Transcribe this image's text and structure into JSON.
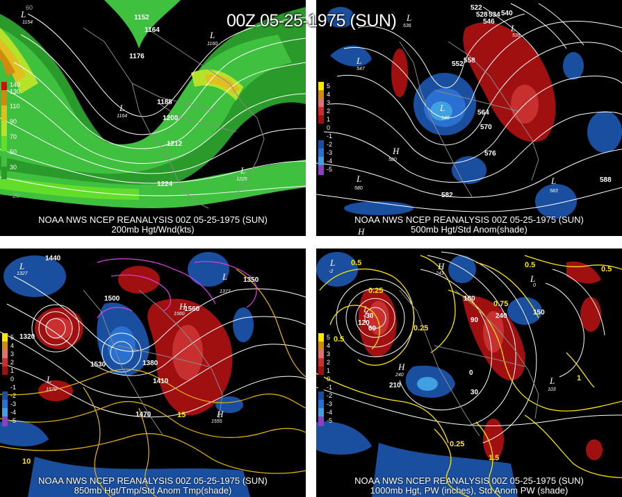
{
  "title": "00Z 05-25-1975 (SUN)",
  "colors": {
    "wind_scale": [
      "#2a9a2a",
      "#3fc03f",
      "#62de2a",
      "#b7e22a",
      "#e0c020",
      "#d08a10",
      "#8a3010"
    ],
    "anom_pos": [
      "#6a0000",
      "#a01010",
      "#c83030",
      "#e07070"
    ],
    "anom_neg": [
      "#1a4fa0",
      "#2a70d0",
      "#40a0e0",
      "#80d0f0"
    ]
  },
  "panels": [
    {
      "id": "200mb",
      "caption_line1": "NOAA NWS NCEP REANALYSIS 00Z 05-25-1975 (SUN)",
      "caption_line2": "200mb Hgt/Wnd(kts)",
      "legend": [
        "130",
        "110",
        "90",
        "70",
        "50",
        "30"
      ],
      "legend_top": "140",
      "contour_labels": [
        "1152",
        "1164",
        "1176",
        "1188",
        "1200",
        "1212",
        "1224"
      ],
      "lows": [
        {
          "label": "L",
          "value": "1154"
        },
        {
          "label": "L",
          "value": "1160"
        },
        {
          "label": "L",
          "value": "1164"
        },
        {
          "label": "L",
          "value": "1225"
        }
      ],
      "grid_labels": [
        "60",
        "20"
      ]
    },
    {
      "id": "500mb",
      "caption_line1": "NOAA NWS NCEP REANALYSIS 00Z 05-25-1975 (SUN)",
      "caption_line2": "500mb Hgt/Std Anom(shade)",
      "legend": [
        "5",
        "4",
        "3",
        "2",
        "1",
        "0",
        "-1",
        "-2",
        "-3",
        "-4",
        "-5"
      ],
      "contour_labels": [
        "522",
        "528",
        "534",
        "540",
        "546",
        "552",
        "558",
        "564",
        "570",
        "576",
        "582",
        "588"
      ],
      "lows": [
        {
          "label": "L",
          "value": "535"
        },
        {
          "label": "L",
          "value": "536"
        },
        {
          "label": "L",
          "value": "547"
        },
        {
          "label": "L",
          "value": "546"
        },
        {
          "label": "L",
          "value": "583"
        },
        {
          "label": "L",
          "value": "580"
        }
      ],
      "highs": [
        {
          "label": "H",
          "value": "580"
        },
        {
          "label": "H",
          "value": ""
        }
      ]
    },
    {
      "id": "850mb",
      "caption_line1": "NOAA NWS NCEP REANALYSIS 00Z 05-25-1975 (SUN)",
      "caption_line2": "850mb Hgt/Tmp/Std Anom Tmp(shade)",
      "legend": [
        "5",
        "4",
        "3",
        "2",
        "1",
        "0",
        "-1",
        "-2",
        "-3",
        "-4",
        "-5"
      ],
      "contour_labels": [
        "1440",
        "1500",
        "1320",
        "1380",
        "1530",
        "1410",
        "1350",
        "1470",
        "1560"
      ],
      "temp_labels": [
        "15",
        "10"
      ],
      "lows": [
        {
          "label": "L",
          "value": "1327"
        },
        {
          "label": "L",
          "value": "1377"
        },
        {
          "label": "L",
          "value": "1570"
        }
      ],
      "highs": [
        {
          "label": "H",
          "value": "1560"
        },
        {
          "label": "H",
          "value": "1555"
        }
      ]
    },
    {
      "id": "1000mb",
      "caption_line1": "NOAA NWS NCEP REANALYSIS 00Z 05-25-1975 (SUN)",
      "caption_line2": "1000mb Hgt, PW (inches), Std Anom PW (shade)",
      "legend": [
        "5",
        "4",
        "3",
        "2",
        "1",
        "0",
        "-1",
        "-2",
        "-3",
        "-4",
        "-5"
      ],
      "contour_labels": [
        "-30",
        "30",
        "60",
        "90",
        "150",
        "180",
        "210",
        "240",
        "0",
        "120"
      ],
      "pw_labels": [
        "0.5",
        "0.25",
        "0.75",
        "1",
        "1.5"
      ],
      "lows": [
        {
          "label": "L",
          "value": "-2"
        },
        {
          "label": "L",
          "value": "0"
        },
        {
          "label": "L",
          "value": "-30"
        },
        {
          "label": "L",
          "value": "103"
        }
      ],
      "highs": [
        {
          "label": "H",
          "value": "240"
        },
        {
          "label": "H",
          "value": "243"
        }
      ]
    }
  ]
}
